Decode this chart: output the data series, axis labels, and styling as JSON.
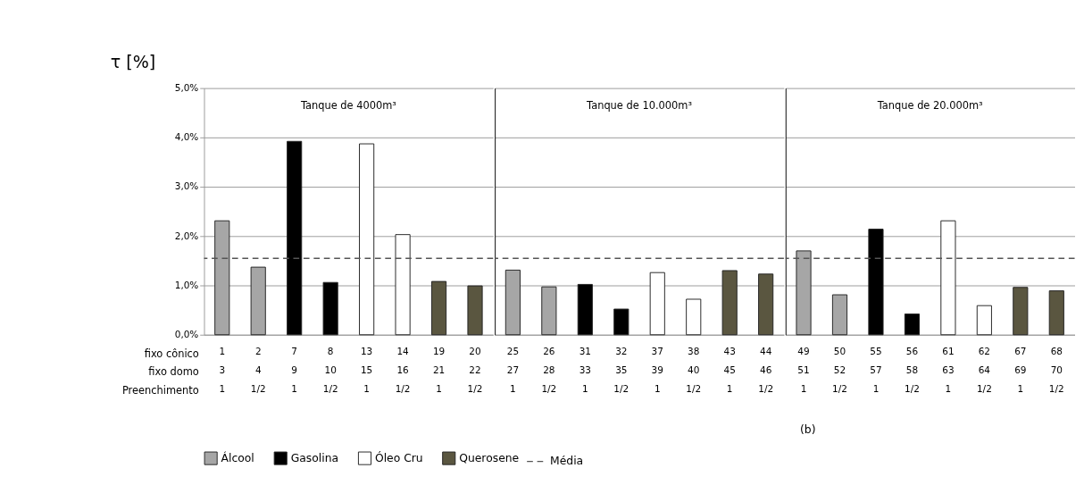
{
  "chart_data": [
    {
      "type": "bar",
      "title": "Tanque de 4000m³",
      "ylabel": "τ  [%]",
      "categories": [
        "1\n3\n1",
        "2\n4\n1/2",
        "7\n9\n1",
        "8\n10\n1/2",
        "13\n15\n1",
        "14\n16\n1/2",
        "19\n21\n1",
        "20\n22\n1/2"
      ],
      "series": [
        {
          "name": "Álcool",
          "color": "#a6a6a6",
          "values": [
            2.31,
            1.37,
            null,
            null,
            null,
            null,
            null,
            null
          ]
        },
        {
          "name": "Gasolina",
          "color": "#000000",
          "values": [
            null,
            null,
            3.92,
            1.06,
            null,
            null,
            null,
            null
          ]
        },
        {
          "name": "Óleo Cru",
          "color": "#ffffff",
          "values": [
            null,
            null,
            null,
            null,
            3.87,
            2.03,
            null,
            null
          ]
        },
        {
          "name": "Querosene",
          "color": "#5a5640",
          "values": [
            null,
            null,
            null,
            null,
            null,
            null,
            1.08,
            0.99
          ]
        }
      ],
      "ylim": [
        0,
        5
      ],
      "yticks": [
        {
          "value": 0,
          "label": "0,0%"
        },
        {
          "value": 1,
          "label": "1,0%"
        },
        {
          "value": 2,
          "label": "2,0%"
        },
        {
          "value": 3,
          "label": "3,0%"
        },
        {
          "value": 4,
          "label": "4,0%"
        },
        {
          "value": 5,
          "label": "5,0%"
        }
      ],
      "grid": "y",
      "legend": "bottom",
      "ref_lines": [
        {
          "axis": "y",
          "value": 1.55,
          "label": "Média",
          "color": "#555555",
          "line_style": "dashed"
        }
      ],
      "annotations": [
        "fixo cônico",
        "fixo domo",
        "Preenchimento"
      ]
    },
    {
      "type": "bar",
      "title": "Tanque de 10.000m³",
      "categories": [
        "25\n27\n1",
        "26\n28\n1/2",
        "31\n33\n1",
        "32\n35\n1/2",
        "37\n39\n1",
        "38\n40\n1/2",
        "43\n45\n1",
        "44\n46\n1/2"
      ],
      "series": [
        {
          "name": "Álcool",
          "color": "#a6a6a6",
          "values": [
            1.31,
            0.97,
            null,
            null,
            null,
            null,
            null,
            null
          ]
        },
        {
          "name": "Gasolina",
          "color": "#000000",
          "values": [
            null,
            null,
            1.02,
            0.52,
            null,
            null,
            null,
            null
          ]
        },
        {
          "name": "Óleo Cru",
          "color": "#ffffff",
          "values": [
            null,
            null,
            null,
            null,
            1.26,
            0.72,
            null,
            null
          ]
        },
        {
          "name": "Querosene",
          "color": "#5a5640",
          "values": [
            null,
            null,
            null,
            null,
            null,
            null,
            1.3,
            1.23
          ]
        }
      ],
      "ylim": [
        0,
        5
      ],
      "yticks": [
        {
          "value": 0,
          "label": null
        },
        {
          "value": 1,
          "label": null
        },
        {
          "value": 2,
          "label": null
        },
        {
          "value": 3,
          "label": null
        },
        {
          "value": 4,
          "label": null
        },
        {
          "value": 5,
          "label": null
        }
      ],
      "tick_labels": "x",
      "grid": "y",
      "legend": "bottom",
      "ref_lines": [
        {
          "axis": "y",
          "value": 1.55,
          "color": "#555555",
          "line_style": "dashed"
        }
      ]
    },
    {
      "type": "bar",
      "title": "Tanque de 20.000m³",
      "categories": [
        "49\n51\n1",
        "50\n52\n1/2",
        "55\n57\n1",
        "56\n58\n1/2",
        "61\n63\n1",
        "62\n64\n1/2",
        "67\n69\n1",
        "68\n70\n1/2"
      ],
      "series": [
        {
          "name": "Álcool",
          "color": "#a6a6a6",
          "values": [
            1.7,
            0.81,
            null,
            null,
            null,
            null,
            null,
            null
          ]
        },
        {
          "name": "Gasolina",
          "color": "#000000",
          "values": [
            null,
            null,
            2.14,
            0.42,
            null,
            null,
            null,
            null
          ]
        },
        {
          "name": "Óleo Cru",
          "color": "#ffffff",
          "values": [
            null,
            null,
            null,
            null,
            2.31,
            0.59,
            null,
            null
          ]
        },
        {
          "name": "Querosene",
          "color": "#5a5640",
          "values": [
            null,
            null,
            null,
            null,
            null,
            null,
            0.96,
            0.89
          ]
        }
      ],
      "ylim": [
        0,
        5
      ],
      "yticks": [
        {
          "value": 0,
          "label": null
        },
        {
          "value": 1,
          "label": null
        },
        {
          "value": 2,
          "label": null
        },
        {
          "value": 3,
          "label": null
        },
        {
          "value": 4,
          "label": null
        },
        {
          "value": 5,
          "label": null
        }
      ],
      "tick_labels": "x",
      "grid": "y",
      "legend": "bottom",
      "ref_lines": [
        {
          "axis": "y",
          "value": 1.55,
          "color": "#555555",
          "line_style": "dashed"
        }
      ],
      "annotations": [
        "(b)"
      ]
    }
  ]
}
